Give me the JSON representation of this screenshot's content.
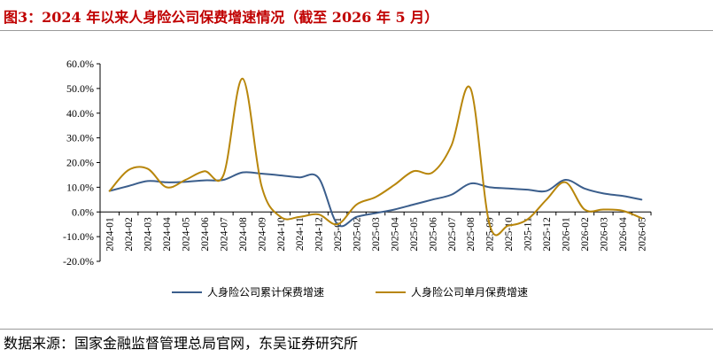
{
  "title": "图3：2024 年以来人身险公司保费增速情况（截至 2026 年 5 月）",
  "source": "数据来源：国家金融监督管理总局官网，东吴证券研究所",
  "chart_data": {
    "type": "line",
    "ylim": [
      -0.2,
      0.6
    ],
    "yticks": [
      "60.0%",
      "50.0%",
      "40.0%",
      "30.0%",
      "20.0%",
      "10.0%",
      "0.0%",
      "-10.0%",
      "-20.0%"
    ],
    "ytick_values": [
      0.6,
      0.5,
      0.4,
      0.3,
      0.2,
      0.1,
      0.0,
      -0.1,
      -0.2
    ],
    "categories": [
      "2024-01",
      "2024-02",
      "2024-03",
      "2024-04",
      "2024-05",
      "2024-06",
      "2024-07",
      "2024-08",
      "2024-09",
      "2024-10",
      "2024-11",
      "2024-12",
      "2025-01",
      "2025-02",
      "2025-03",
      "2025-04",
      "2025-05",
      "2025-06",
      "2025-07",
      "2025-08",
      "2025-09",
      "2025-10",
      "2025-11",
      "2025-12",
      "2026-01",
      "2026-02",
      "2026-03",
      "2026-04",
      "2026-05"
    ],
    "grid": false,
    "legend": "bottom",
    "series": [
      {
        "name": "人身险公司累计保费增速",
        "color": "#3B5E8C",
        "values": [
          0.085,
          0.105,
          0.125,
          0.12,
          0.122,
          0.128,
          0.13,
          0.16,
          0.155,
          0.148,
          0.14,
          0.138,
          -0.05,
          -0.02,
          -0.005,
          0.01,
          0.03,
          0.05,
          0.07,
          0.115,
          0.1,
          0.095,
          0.09,
          0.085,
          0.13,
          0.095,
          0.075,
          0.065,
          0.05
        ]
      },
      {
        "name": "人身险公司单月保费增速",
        "color": "#B8860B",
        "values": [
          0.085,
          0.17,
          0.175,
          0.1,
          0.13,
          0.165,
          0.15,
          0.54,
          0.105,
          -0.02,
          -0.02,
          -0.01,
          -0.05,
          0.03,
          0.06,
          0.11,
          0.165,
          0.16,
          0.27,
          0.5,
          -0.05,
          -0.055,
          -0.03,
          0.05,
          0.12,
          0.01,
          0.01,
          0.005,
          -0.025
        ]
      }
    ]
  }
}
